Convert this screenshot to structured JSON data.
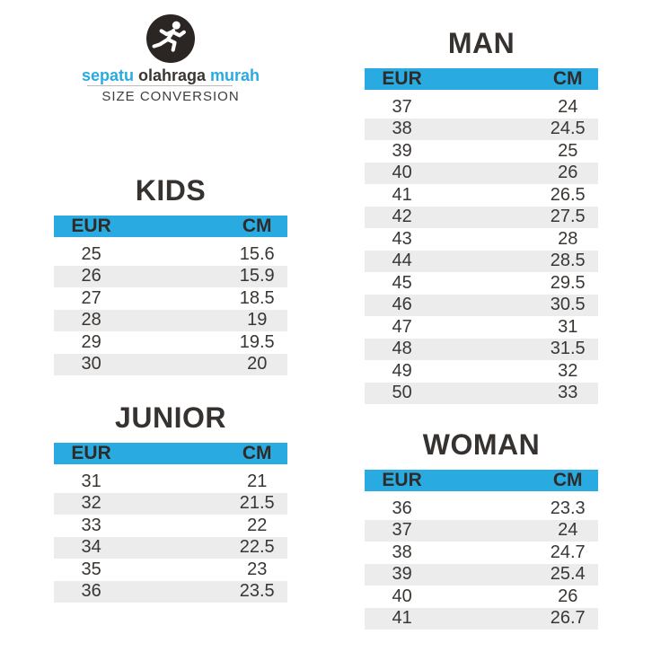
{
  "brand": {
    "logo_icon": "runner-icon",
    "words": [
      "sepatu",
      "olahraga",
      "murah"
    ],
    "subtitle": "SIZE CONVERSION"
  },
  "colors": {
    "accent": "#29ABE2",
    "dark_text": "#3A3633",
    "row_alt": "#ECECEC",
    "logo_bg": "#2B2523"
  },
  "sections": {
    "kids": {
      "title": "KIDS",
      "headers": [
        "EUR",
        "CM"
      ],
      "rows": [
        [
          "25",
          "15.6"
        ],
        [
          "26",
          "15.9"
        ],
        [
          "27",
          "18.5"
        ],
        [
          "28",
          "19"
        ],
        [
          "29",
          "19.5"
        ],
        [
          "30",
          "20"
        ]
      ]
    },
    "junior": {
      "title": "JUNIOR",
      "headers": [
        "EUR",
        "CM"
      ],
      "rows": [
        [
          "31",
          "21"
        ],
        [
          "32",
          "21.5"
        ],
        [
          "33",
          "22"
        ],
        [
          "34",
          "22.5"
        ],
        [
          "35",
          "23"
        ],
        [
          "36",
          "23.5"
        ]
      ]
    },
    "man": {
      "title": "MAN",
      "headers": [
        "EUR",
        "CM"
      ],
      "rows": [
        [
          "37",
          "24"
        ],
        [
          "38",
          "24.5"
        ],
        [
          "39",
          "25"
        ],
        [
          "40",
          "26"
        ],
        [
          "41",
          "26.5"
        ],
        [
          "42",
          "27.5"
        ],
        [
          "43",
          "28"
        ],
        [
          "44",
          "28.5"
        ],
        [
          "45",
          "29.5"
        ],
        [
          "46",
          "30.5"
        ],
        [
          "47",
          "31"
        ],
        [
          "48",
          "31.5"
        ],
        [
          "49",
          "32"
        ],
        [
          "50",
          "33"
        ]
      ]
    },
    "woman": {
      "title": "WOMAN",
      "headers": [
        "EUR",
        "CM"
      ],
      "rows": [
        [
          "36",
          "23.3"
        ],
        [
          "37",
          "24"
        ],
        [
          "38",
          "24.7"
        ],
        [
          "39",
          "25.4"
        ],
        [
          "40",
          "26"
        ],
        [
          "41",
          "26.7"
        ]
      ]
    }
  }
}
